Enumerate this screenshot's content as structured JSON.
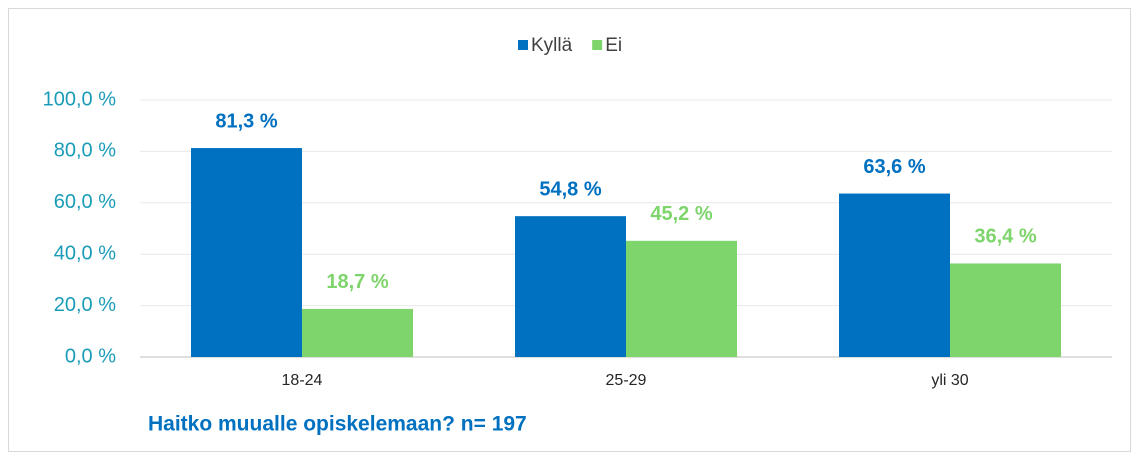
{
  "chart_data": {
    "type": "bar",
    "title": "Haitko muualle opiskelemaan? n= 197",
    "categories": [
      "18-24",
      "25-29",
      "yli 30"
    ],
    "series": [
      {
        "name": "Kyllä",
        "color": "#0070c0",
        "values": [
          81.3,
          54.8,
          63.6
        ],
        "value_labels": [
          "81,3 %",
          "54,8 %",
          "63,6 %"
        ]
      },
      {
        "name": "Ei",
        "color": "#7ed56b",
        "values": [
          18.7,
          45.2,
          36.4
        ],
        "value_labels": [
          "18,7 %",
          "45,2 %",
          "36,4 %"
        ]
      }
    ],
    "ylim": [
      0,
      100
    ],
    "yticks": [
      {
        "value": 0,
        "label": "0,0 %"
      },
      {
        "value": 20,
        "label": "20,0 %"
      },
      {
        "value": 40,
        "label": "40,0 %"
      },
      {
        "value": 60,
        "label": "60,0 %"
      },
      {
        "value": 80,
        "label": "80,0 %"
      },
      {
        "value": 100,
        "label": "100,0 %"
      }
    ],
    "grid": true,
    "legend": "top"
  }
}
